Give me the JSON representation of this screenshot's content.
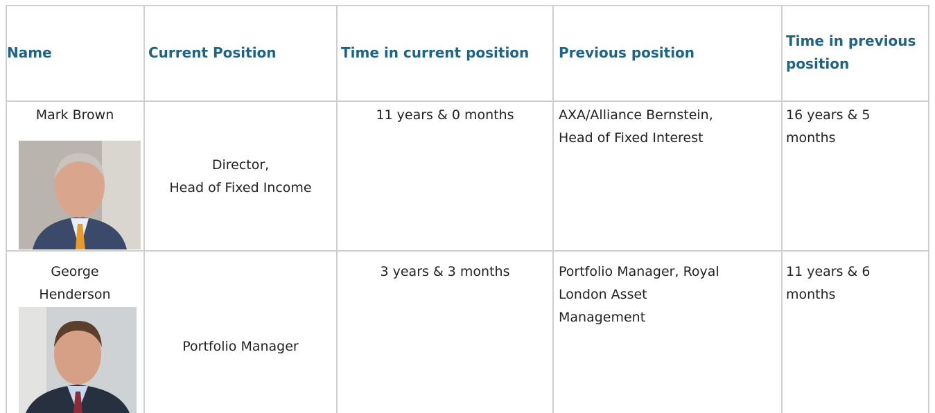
{
  "table": {
    "header": [
      "Name",
      "Current Position",
      "Time in current position",
      "Previous position",
      "Time in previous\nposition"
    ],
    "rows": [
      [
        "Mark Brown",
        "Director,\nHead of Fixed Income",
        "11 years & 0 months",
        "AXA/Alliance Bernstein,\nHead of Fixed Interest",
        "16 years & 5\nmonths"
      ],
      [
        "George\nHenderson",
        "Portfolio Manager",
        "3 years & 3 months",
        "Portfolio Manager, Royal\nLondon Asset\nManagement",
        "11 years & 6\nmonths"
      ]
    ]
  }
}
